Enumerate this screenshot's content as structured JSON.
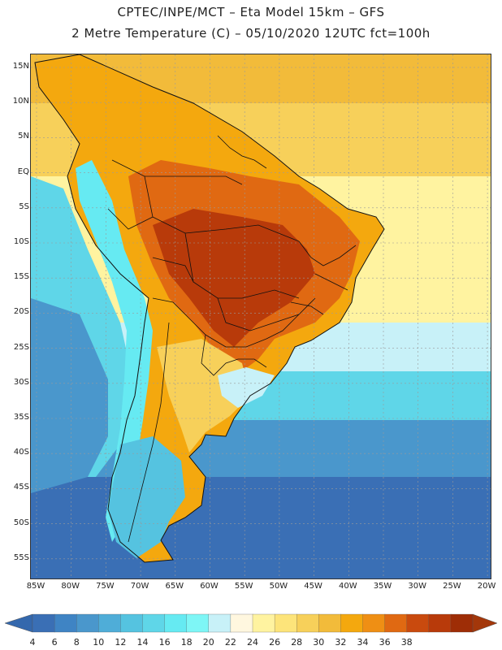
{
  "title_line1": "CPTEC/INPE/MCT –  Eta Model 15km – GFS",
  "title_line2": "2 Metre Temperature (C) – 05/10/2020 12UTC fct=100h",
  "lat_labels": [
    "15N",
    "10N",
    "5N",
    "EQ",
    "5S",
    "10S",
    "15S",
    "20S",
    "25S",
    "30S",
    "35S",
    "40S",
    "45S",
    "50S",
    "55S"
  ],
  "lon_labels": [
    "85W",
    "80W",
    "75W",
    "70W",
    "65W",
    "60W",
    "55W",
    "50W",
    "45W",
    "40W",
    "35W",
    "30W",
    "25W",
    "20W"
  ],
  "colorbar": {
    "labels": [
      "4",
      "6",
      "8",
      "10",
      "12",
      "14",
      "16",
      "18",
      "20",
      "22",
      "24",
      "26",
      "28",
      "30",
      "32",
      "34",
      "36",
      "38"
    ],
    "colors": [
      "#3a6fb5",
      "#3f84c4",
      "#4a97cc",
      "#4fadd8",
      "#55c3e0",
      "#5fd6e8",
      "#66eaf2",
      "#7ef6f6",
      "#c8f1f8",
      "#fff7df",
      "#fff3a0",
      "#fde47a",
      "#f7d05a",
      "#f2bb3a",
      "#f4a80e",
      "#ef8f14",
      "#e06912",
      "#c94a0e",
      "#b83a0a",
      "#9e2d06"
    ],
    "under_color": "#3468ad",
    "over_color": "#a3370a"
  },
  "field_colors": {
    "ocean_deep": "#3a6fb5",
    "ocean_mid": "#4a97cc",
    "ocean_cool": "#5fd6e8",
    "ocean_warm": "#c8f1f8",
    "tropic_pale": "#fff3a0",
    "tropic": "#f7d05a",
    "tropic_warm": "#f2bb3a",
    "land_warm": "#f4a80e",
    "land_hot": "#e06912",
    "land_very_hot": "#b83a0a",
    "andes_cold": "#66eaf2",
    "patagonia": "#55c3e0",
    "coast_line": "#111111"
  }
}
